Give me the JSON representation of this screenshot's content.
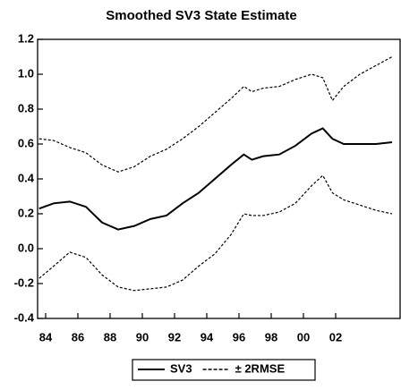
{
  "chart_data": {
    "type": "line",
    "title": "Smoothed SV3 State Estimate",
    "x": [
      1983.6,
      1984.5,
      1985.5,
      1986.5,
      1987.5,
      1988.5,
      1989.5,
      1990.5,
      1991.5,
      1992.5,
      1993.5,
      1994.5,
      1995.5,
      1996.3,
      1996.8,
      1997.5,
      1998.5,
      1999.5,
      2000.5,
      2001.2,
      2001.8,
      2002.5,
      2003.5,
      2004.5,
      2005.5
    ],
    "series": [
      {
        "name": "SV3",
        "color": "#000000",
        "style": "solid",
        "values": [
          0.23,
          0.26,
          0.27,
          0.24,
          0.15,
          0.11,
          0.13,
          0.17,
          0.19,
          0.26,
          0.32,
          0.4,
          0.48,
          0.54,
          0.51,
          0.53,
          0.54,
          0.59,
          0.66,
          0.69,
          0.63,
          0.6,
          0.6,
          0.6,
          0.61
        ]
      },
      {
        "name": "± 2RMSE",
        "color": "#000000",
        "style": "dashed",
        "values": [
          0.63,
          0.62,
          0.58,
          0.55,
          0.48,
          0.44,
          0.47,
          0.53,
          0.57,
          0.63,
          0.7,
          0.78,
          0.86,
          0.93,
          0.9,
          0.92,
          0.93,
          0.97,
          1.0,
          0.98,
          0.85,
          0.93,
          1.0,
          1.05,
          1.1
        ],
        "lower": [
          -0.17,
          -0.1,
          -0.02,
          -0.05,
          -0.15,
          -0.22,
          -0.24,
          -0.23,
          -0.22,
          -0.18,
          -0.1,
          -0.03,
          0.08,
          0.2,
          0.19,
          0.19,
          0.21,
          0.26,
          0.36,
          0.42,
          0.32,
          0.28,
          0.25,
          0.22,
          0.2
        ]
      }
    ],
    "xlim": [
      1983.5,
      2006
    ],
    "xticks": [
      {
        "value": 1984,
        "label": "84"
      },
      {
        "value": 1986,
        "label": "86"
      },
      {
        "value": 1988,
        "label": "88"
      },
      {
        "value": 1990,
        "label": "90"
      },
      {
        "value": 1992,
        "label": "92"
      },
      {
        "value": 1994,
        "label": "94"
      },
      {
        "value": 1996,
        "label": "96"
      },
      {
        "value": 1998,
        "label": "98"
      },
      {
        "value": 2000,
        "label": "00"
      },
      {
        "value": 2002,
        "label": "02"
      }
    ],
    "ylim": [
      -0.4,
      1.2
    ],
    "yticks": [
      -0.4,
      -0.2,
      {
        "value": 0,
        "label": "0.0"
      },
      0.2,
      0.4,
      0.6,
      0.8,
      {
        "value": 1,
        "label": "1.0"
      },
      1.2
    ],
    "grid": false
  }
}
